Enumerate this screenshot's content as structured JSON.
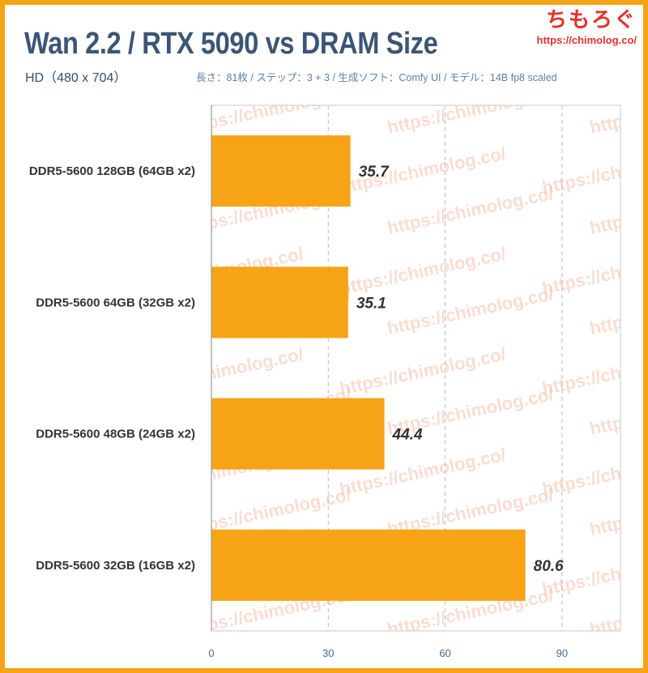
{
  "header": {
    "title": "Wan 2.2 / RTX 5090 vs DRAM Size",
    "subtitle": "HD（480 x 704）",
    "note": "長さ：81枚 / ステップ：3 + 3 / 生成ソフト：Comfy UI / モデル：14B fp8 scaled"
  },
  "brand": {
    "name": "ちもろぐ",
    "url": "https://chimolog.co/"
  },
  "watermark": "https://chimolog.co/",
  "colors": {
    "frame": "#f7a316",
    "bar": "#f7a316",
    "title": "#3b5675",
    "grid": "#bbbbbb"
  },
  "chart_data": {
    "type": "bar",
    "orientation": "horizontal",
    "categories": [
      "DDR5-5600 128GB (64GB x2)",
      "DDR5-5600 64GB (32GB x2)",
      "DDR5-5600 48GB (24GB x2)",
      "DDR5-5600 32GB (16GB x2)"
    ],
    "values": [
      35.7,
      35.1,
      44.4,
      80.6
    ],
    "value_labels": [
      "35.7",
      "35.1",
      "44.4",
      "80.6"
    ],
    "xlim": [
      0,
      105
    ],
    "xticks": [
      0,
      30,
      60,
      90
    ],
    "xtick_labels": [
      "0",
      "30",
      "60",
      "90"
    ],
    "grid": "vertical dashed",
    "legend": "none"
  }
}
